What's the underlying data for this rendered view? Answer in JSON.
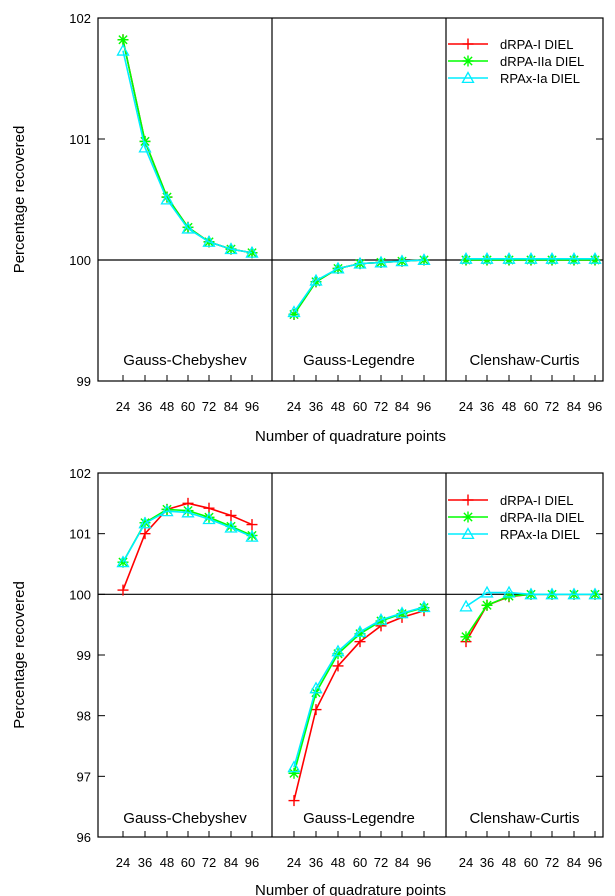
{
  "chart_data": [
    {
      "type": "line",
      "ylabel": "Percentage recovered",
      "xlabel": "Number of quadrature points",
      "ylim": [
        99,
        102
      ],
      "yticks": [
        "99",
        "100",
        "101",
        "102"
      ],
      "xticks": [
        "24",
        "36",
        "48",
        "60",
        "72",
        "84",
        "96"
      ],
      "x": [
        24,
        36,
        48,
        60,
        72,
        84,
        96
      ],
      "reference_line": 100,
      "legend_position": "top-right",
      "panels": [
        {
          "title": "Gauss-Chebyshev",
          "series": [
            {
              "name": "dRPA-I DIEL",
              "values": [
                101.82,
                100.98,
                100.52,
                100.27,
                100.15,
                100.09,
                100.06
              ]
            },
            {
              "name": "dRPA-IIa DIEL",
              "values": [
                101.82,
                100.98,
                100.52,
                100.27,
                100.15,
                100.09,
                100.06
              ]
            },
            {
              "name": "RPAx-Ia DIEL",
              "values": [
                101.73,
                100.93,
                100.5,
                100.26,
                100.15,
                100.09,
                100.06
              ]
            }
          ]
        },
        {
          "title": "Gauss-Legendre",
          "series": [
            {
              "name": "dRPA-I DIEL",
              "values": [
                99.55,
                99.82,
                99.93,
                99.97,
                99.98,
                99.99,
                100.0
              ]
            },
            {
              "name": "dRPA-IIa DIEL",
              "values": [
                99.55,
                99.82,
                99.93,
                99.97,
                99.98,
                99.99,
                100.0
              ]
            },
            {
              "name": "RPAx-Ia DIEL",
              "values": [
                99.57,
                99.83,
                99.93,
                99.97,
                99.98,
                99.99,
                100.0
              ]
            }
          ]
        },
        {
          "title": "Clenshaw-Curtis",
          "series": [
            {
              "name": "dRPA-I DIEL",
              "values": [
                100.0,
                100.0,
                100.0,
                100.0,
                100.0,
                100.0,
                100.0
              ]
            },
            {
              "name": "dRPA-IIa DIEL",
              "values": [
                100.0,
                100.0,
                100.0,
                100.0,
                100.0,
                100.0,
                100.0
              ]
            },
            {
              "name": "RPAx-Ia DIEL",
              "values": [
                100.01,
                100.01,
                100.01,
                100.01,
                100.01,
                100.01,
                100.01
              ]
            }
          ]
        }
      ]
    },
    {
      "type": "line",
      "ylabel": "Percentage recovered",
      "xlabel": "Number of quadrature points",
      "ylim": [
        96,
        102
      ],
      "yticks": [
        "96",
        "97",
        "98",
        "99",
        "100",
        "101",
        "102"
      ],
      "xticks": [
        "24",
        "36",
        "48",
        "60",
        "72",
        "84",
        "96"
      ],
      "x": [
        24,
        36,
        48,
        60,
        72,
        84,
        96
      ],
      "reference_line": 100,
      "legend_position": "top-right",
      "panels": [
        {
          "title": "Gauss-Chebyshev",
          "series": [
            {
              "name": "dRPA-I DIEL",
              "values": [
                100.07,
                101.0,
                101.4,
                101.5,
                101.42,
                101.3,
                101.15
              ]
            },
            {
              "name": "dRPA-IIa DIEL",
              "values": [
                100.53,
                101.18,
                101.4,
                101.38,
                101.27,
                101.12,
                100.97
              ]
            },
            {
              "name": "RPAx-Ia DIEL",
              "values": [
                100.53,
                101.17,
                101.37,
                101.35,
                101.24,
                101.1,
                100.95
              ]
            }
          ]
        },
        {
          "title": "Gauss-Legendre",
          "series": [
            {
              "name": "dRPA-I DIEL",
              "values": [
                96.6,
                98.1,
                98.82,
                99.22,
                99.48,
                99.62,
                99.73
              ]
            },
            {
              "name": "dRPA-IIa DIEL",
              "values": [
                97.05,
                98.38,
                99.02,
                99.35,
                99.56,
                99.68,
                99.78
              ]
            },
            {
              "name": "RPAx-Ia DIEL",
              "values": [
                97.15,
                98.45,
                99.06,
                99.38,
                99.58,
                99.69,
                99.79
              ]
            }
          ]
        },
        {
          "title": "Clenshaw-Curtis",
          "series": [
            {
              "name": "dRPA-I DIEL",
              "values": [
                99.22,
                99.82,
                99.96,
                100.0,
                100.0,
                100.0,
                100.0
              ]
            },
            {
              "name": "dRPA-IIa DIEL",
              "values": [
                99.3,
                99.82,
                99.97,
                100.0,
                100.0,
                100.0,
                100.0
              ]
            },
            {
              "name": "RPAx-Ia DIEL",
              "values": [
                99.8,
                100.03,
                100.03,
                100.0,
                100.0,
                100.0,
                100.0
              ]
            }
          ]
        }
      ]
    }
  ],
  "colors": {
    "series": [
      "#ff0000",
      "#00ff00",
      "#00eeff"
    ],
    "axes": "#000000",
    "background": "#ffffff"
  },
  "markers": [
    "plus",
    "asterisk",
    "triangle"
  ]
}
